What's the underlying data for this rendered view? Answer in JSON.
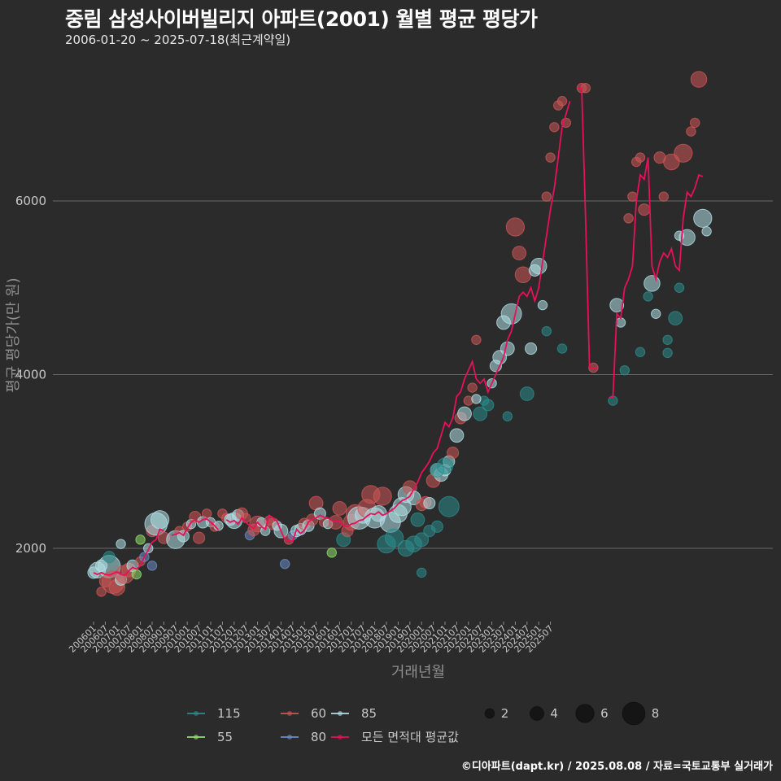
{
  "title": "중림 삼성사이버빌리지 아파트(2001) 월별 평균 평당가",
  "subtitle": "2006-01-20 ~ 2025-07-18(최근계약일)",
  "caption": "©디아파트(dapt.kr) / 2025.08.08 / 자료=국토교통부 실거래가",
  "chart_data": {
    "type": "scatter",
    "title": "중림 삼성사이버빌리지 아파트(2001) 월별 평균 평당가",
    "xlabel": "거래년월",
    "ylabel": "평균 평당가(만 원)",
    "ylim": [
      1000,
      7600
    ],
    "yticks": [
      2000,
      4000,
      6000
    ],
    "x_start_month": "200601",
    "x_end_month": "202508",
    "xticks": [
      "200601",
      "200607",
      "200701",
      "200707",
      "200801",
      "200807",
      "200901",
      "200907",
      "201001",
      "201007",
      "201101",
      "201107",
      "201201",
      "201207",
      "201301",
      "201307",
      "201401",
      "201407",
      "201501",
      "201507",
      "201601",
      "201607",
      "201701",
      "201707",
      "201801",
      "201807",
      "201901",
      "201907",
      "202001",
      "202007",
      "202101",
      "202107",
      "202201",
      "202207",
      "202301",
      "202307",
      "202401",
      "202407",
      "202501",
      "202507"
    ],
    "series_colors": {
      "115": "#2a8c8c",
      "55": "#8ee06a",
      "60": "#cd5555",
      "80": "#6b8cc7",
      "85": "#b0e0e6",
      "avg": "#e8105a"
    },
    "legend": {
      "series": [
        {
          "key": "115",
          "label": "115"
        },
        {
          "key": "60",
          "label": "60"
        },
        {
          "key": "85",
          "label": "85"
        },
        {
          "key": "55",
          "label": "55"
        },
        {
          "key": "80",
          "label": "80"
        },
        {
          "key": "avg",
          "label": "모든 면적대 평균값"
        }
      ],
      "sizes": [
        2,
        4,
        6,
        8
      ]
    },
    "avg_line": [
      [
        0,
        1720
      ],
      [
        2,
        1700
      ],
      [
        4,
        1720
      ],
      [
        6,
        1700
      ],
      [
        8,
        1690
      ],
      [
        10,
        1710
      ],
      [
        12,
        1730
      ],
      [
        14,
        1700
      ],
      [
        16,
        1690
      ],
      [
        18,
        1740
      ],
      [
        20,
        1780
      ],
      [
        22,
        1760
      ],
      [
        24,
        1800
      ],
      [
        26,
        1900
      ],
      [
        28,
        1980
      ],
      [
        30,
        2070
      ],
      [
        32,
        2100
      ],
      [
        34,
        2220
      ],
      [
        36,
        2200
      ],
      null,
      [
        40,
        2150
      ],
      [
        42,
        2160
      ],
      [
        44,
        2180
      ],
      [
        46,
        2150
      ],
      [
        48,
        2230
      ],
      [
        50,
        2300
      ],
      [
        52,
        2330
      ],
      [
        54,
        2300
      ],
      [
        56,
        2330
      ],
      [
        58,
        2340
      ],
      [
        60,
        2300
      ],
      [
        62,
        2260
      ],
      [
        64,
        2210
      ],
      null,
      [
        68,
        2330
      ],
      [
        70,
        2300
      ],
      [
        72,
        2320
      ],
      [
        74,
        2280
      ],
      [
        76,
        2350
      ],
      [
        78,
        2300
      ],
      [
        80,
        2260
      ],
      [
        82,
        2230
      ],
      [
        84,
        2300
      ],
      [
        86,
        2250
      ],
      [
        88,
        2220
      ],
      [
        90,
        2380
      ],
      [
        92,
        2350
      ],
      [
        94,
        2310
      ],
      [
        96,
        2200
      ],
      [
        98,
        2100
      ],
      [
        100,
        2090
      ],
      [
        102,
        2080
      ],
      [
        104,
        2220
      ],
      [
        106,
        2170
      ],
      [
        108,
        2210
      ],
      [
        110,
        2300
      ],
      [
        112,
        2340
      ],
      [
        114,
        2350
      ],
      [
        116,
        2380
      ],
      [
        118,
        2360
      ],
      [
        120,
        2350
      ],
      [
        122,
        2320
      ],
      [
        124,
        2310
      ],
      [
        126,
        2310
      ],
      [
        128,
        2260
      ],
      [
        130,
        2250
      ],
      [
        132,
        2280
      ],
      [
        134,
        2290
      ],
      [
        136,
        2320
      ],
      [
        138,
        2330
      ],
      [
        140,
        2370
      ],
      [
        142,
        2400
      ],
      [
        144,
        2390
      ],
      [
        146,
        2420
      ],
      [
        148,
        2380
      ],
      [
        150,
        2400
      ],
      [
        152,
        2430
      ],
      [
        154,
        2460
      ],
      [
        156,
        2510
      ],
      [
        158,
        2550
      ],
      [
        160,
        2570
      ],
      [
        162,
        2600
      ],
      [
        164,
        2680
      ],
      [
        166,
        2760
      ],
      [
        168,
        2870
      ],
      [
        170,
        2930
      ],
      [
        172,
        3000
      ],
      [
        174,
        3100
      ],
      [
        176,
        3150
      ],
      [
        178,
        3300
      ],
      [
        180,
        3450
      ],
      [
        182,
        3400
      ],
      [
        184,
        3500
      ],
      [
        186,
        3750
      ],
      [
        188,
        3800
      ],
      [
        190,
        3950
      ],
      [
        192,
        4050
      ],
      [
        194,
        4150
      ],
      [
        196,
        3950
      ],
      [
        198,
        3900
      ],
      [
        200,
        3950
      ],
      [
        202,
        3800
      ],
      [
        204,
        3900
      ],
      [
        206,
        4000
      ],
      [
        208,
        4100
      ],
      [
        210,
        4200
      ],
      [
        212,
        4400
      ],
      [
        214,
        4500
      ],
      [
        216,
        4700
      ],
      [
        218,
        4900
      ],
      [
        220,
        4950
      ],
      [
        222,
        4900
      ],
      [
        224,
        5000
      ],
      [
        226,
        4850
      ],
      [
        228,
        5000
      ],
      [
        230,
        5300
      ],
      [
        232,
        5600
      ],
      [
        234,
        5900
      ],
      [
        236,
        6150
      ],
      [
        238,
        6500
      ],
      [
        240,
        6850
      ],
      [
        242,
        7000
      ],
      [
        244,
        7150
      ],
      null,
      [
        248,
        7300
      ],
      [
        250,
        7300
      ],
      [
        252,
        5800
      ],
      [
        254,
        4080
      ],
      [
        256,
        4070
      ],
      [
        258,
        4080
      ],
      null,
      [
        264,
        3730
      ],
      [
        266,
        3740
      ],
      [
        268,
        4700
      ],
      [
        270,
        4650
      ],
      [
        272,
        5000
      ],
      [
        274,
        5100
      ],
      [
        276,
        5250
      ],
      [
        278,
        6000
      ],
      [
        280,
        6300
      ],
      [
        282,
        6250
      ],
      [
        284,
        6500
      ],
      [
        286,
        5250
      ],
      [
        288,
        5100
      ],
      [
        290,
        5300
      ],
      [
        292,
        5400
      ],
      [
        294,
        5350
      ],
      [
        296,
        5450
      ],
      [
        298,
        5250
      ],
      [
        300,
        5200
      ],
      [
        302,
        5800
      ],
      [
        304,
        6100
      ],
      [
        306,
        6050
      ],
      [
        308,
        6150
      ],
      [
        310,
        6300
      ],
      [
        312,
        6280
      ]
    ],
    "points": [
      [
        0,
        1720,
        "85",
        3
      ],
      [
        2,
        1750,
        "85",
        5
      ],
      [
        4,
        1800,
        "85",
        3
      ],
      [
        6,
        1620,
        "60",
        3
      ],
      [
        8,
        1790,
        "85",
        8
      ],
      [
        10,
        1610,
        "60",
        8
      ],
      [
        12,
        1550,
        "60",
        5
      ],
      [
        14,
        1640,
        "85",
        3
      ],
      [
        16,
        1700,
        "60",
        6
      ],
      [
        18,
        1750,
        "60",
        4
      ],
      [
        20,
        1800,
        "85",
        3
      ],
      [
        22,
        1700,
        "55",
        2
      ],
      [
        24,
        1850,
        "60",
        2
      ],
      [
        26,
        1900,
        "80",
        2
      ],
      [
        28,
        2000,
        "85",
        2
      ],
      [
        30,
        2200,
        "60",
        3
      ],
      [
        32,
        2280,
        "85",
        8
      ],
      [
        34,
        2330,
        "85",
        6
      ],
      [
        36,
        2120,
        "60",
        3
      ],
      [
        8,
        1900,
        "115",
        3
      ],
      [
        4,
        1500,
        "60",
        2
      ],
      [
        24,
        2100,
        "55",
        2
      ],
      [
        30,
        1800,
        "80",
        2
      ],
      [
        14,
        2050,
        "85",
        2
      ],
      [
        42,
        2100,
        "85",
        6
      ],
      [
        44,
        2200,
        "60",
        2
      ],
      [
        46,
        2140,
        "85",
        3
      ],
      [
        48,
        2250,
        "60",
        2
      ],
      [
        50,
        2280,
        "85",
        2
      ],
      [
        52,
        2360,
        "60",
        3
      ],
      [
        54,
        2120,
        "60",
        3
      ],
      [
        56,
        2300,
        "85",
        3
      ],
      [
        58,
        2400,
        "60",
        2
      ],
      [
        60,
        2300,
        "85",
        2
      ],
      [
        62,
        2250,
        "60",
        2
      ],
      [
        64,
        2260,
        "85",
        2
      ],
      [
        66,
        2400,
        "60",
        2
      ],
      [
        68,
        2350,
        "60",
        2
      ],
      [
        70,
        2330,
        "85",
        3
      ],
      [
        72,
        2320,
        "85",
        5
      ],
      [
        74,
        2380,
        "85",
        3
      ],
      [
        76,
        2400,
        "60",
        3
      ],
      [
        78,
        2350,
        "60",
        2
      ],
      [
        80,
        2150,
        "80",
        2
      ],
      [
        82,
        2210,
        "60",
        3
      ],
      [
        84,
        2280,
        "60",
        5
      ],
      [
        86,
        2300,
        "85",
        2
      ],
      [
        88,
        2200,
        "85",
        2
      ],
      [
        90,
        2320,
        "60",
        2
      ],
      [
        92,
        2280,
        "60",
        3
      ],
      [
        94,
        2260,
        "85",
        2
      ],
      [
        96,
        2200,
        "85",
        4
      ],
      [
        98,
        1820,
        "80",
        2
      ],
      [
        100,
        2100,
        "60",
        2
      ],
      [
        102,
        2150,
        "80",
        2
      ],
      [
        104,
        2200,
        "85",
        3
      ],
      [
        106,
        2220,
        "85",
        3
      ],
      [
        108,
        2280,
        "60",
        3
      ],
      [
        110,
        2260,
        "85",
        3
      ],
      [
        112,
        2330,
        "60",
        3
      ],
      [
        114,
        2520,
        "60",
        4
      ],
      [
        116,
        2400,
        "85",
        3
      ],
      [
        118,
        2300,
        "60",
        2
      ],
      [
        120,
        2280,
        "85",
        2
      ],
      [
        122,
        1950,
        "55",
        2
      ],
      [
        124,
        2300,
        "60",
        4
      ],
      [
        126,
        2460,
        "60",
        4
      ],
      [
        128,
        2100,
        "115",
        4
      ],
      [
        130,
        2200,
        "60",
        3
      ],
      [
        132,
        2300,
        "60",
        5
      ],
      [
        134,
        2400,
        "60",
        6
      ],
      [
        136,
        2350,
        "85",
        8
      ],
      [
        138,
        2380,
        "85",
        5
      ],
      [
        140,
        2460,
        "60",
        6
      ],
      [
        142,
        2620,
        "60",
        6
      ],
      [
        144,
        2350,
        "85",
        7
      ],
      [
        146,
        2400,
        "85",
        5
      ],
      [
        148,
        2600,
        "60",
        6
      ],
      [
        150,
        2050,
        "115",
        6
      ],
      [
        152,
        2300,
        "85",
        7
      ],
      [
        154,
        2120,
        "115",
        6
      ],
      [
        156,
        2400,
        "85",
        6
      ],
      [
        158,
        2480,
        "85",
        6
      ],
      [
        160,
        2620,
        "85",
        5
      ],
      [
        162,
        2700,
        "60",
        4
      ],
      [
        164,
        2580,
        "85",
        4
      ],
      [
        166,
        2330,
        "115",
        4
      ],
      [
        168,
        2500,
        "60",
        3
      ],
      [
        170,
        2530,
        "60",
        3
      ],
      [
        172,
        2520,
        "85",
        3
      ],
      [
        174,
        2780,
        "60",
        4
      ],
      [
        176,
        2900,
        "85",
        4
      ],
      [
        178,
        2850,
        "85",
        4
      ],
      [
        180,
        2900,
        "85",
        3
      ],
      [
        182,
        3000,
        "85",
        3
      ],
      [
        184,
        3100,
        "60",
        3
      ],
      [
        186,
        3300,
        "85",
        4
      ],
      [
        188,
        3500,
        "60",
        3
      ],
      [
        190,
        3550,
        "85",
        4
      ],
      [
        192,
        3700,
        "60",
        2
      ],
      [
        194,
        3850,
        "60",
        2
      ],
      [
        196,
        4400,
        "60",
        2
      ],
      [
        198,
        3550,
        "115",
        4
      ],
      [
        200,
        3700,
        "115",
        2
      ],
      [
        202,
        3650,
        "115",
        3
      ],
      [
        204,
        3900,
        "85",
        2
      ],
      [
        206,
        4100,
        "85",
        3
      ],
      [
        208,
        4200,
        "85",
        4
      ],
      [
        210,
        4600,
        "85",
        4
      ],
      [
        212,
        4300,
        "85",
        4
      ],
      [
        214,
        4700,
        "85",
        7
      ],
      [
        216,
        5700,
        "60",
        6
      ],
      [
        218,
        5400,
        "60",
        4
      ],
      [
        220,
        5150,
        "60",
        5
      ],
      [
        222,
        3780,
        "115",
        4
      ],
      [
        224,
        4300,
        "85",
        3
      ],
      [
        226,
        5200,
        "85",
        3
      ],
      [
        228,
        5250,
        "85",
        5
      ],
      [
        230,
        4800,
        "85",
        2
      ],
      [
        232,
        6050,
        "60",
        2
      ],
      [
        234,
        6500,
        "60",
        2
      ],
      [
        236,
        6850,
        "60",
        2
      ],
      [
        238,
        7100,
        "60",
        2
      ],
      [
        240,
        7150,
        "60",
        2
      ],
      [
        242,
        6900,
        "60",
        2
      ],
      [
        164,
        2050,
        "115",
        5
      ],
      [
        168,
        2100,
        "115",
        4
      ],
      [
        160,
        2000,
        "115",
        5
      ],
      [
        172,
        2200,
        "115",
        3
      ],
      [
        176,
        2900,
        "115",
        4
      ],
      [
        180,
        2950,
        "115",
        5
      ],
      [
        182,
        2480,
        "115",
        7
      ],
      [
        176,
        2250,
        "115",
        3
      ],
      [
        168,
        1720,
        "115",
        2
      ],
      [
        250,
        7300,
        "60",
        2
      ],
      [
        252,
        7300,
        "60",
        2
      ],
      [
        256,
        4080,
        "60",
        2
      ],
      [
        266,
        3700,
        "115",
        2
      ],
      [
        268,
        4800,
        "85",
        4
      ],
      [
        270,
        4600,
        "85",
        2
      ],
      [
        272,
        4050,
        "115",
        2
      ],
      [
        274,
        5800,
        "60",
        2
      ],
      [
        276,
        6050,
        "60",
        2
      ],
      [
        278,
        6450,
        "60",
        2
      ],
      [
        280,
        6500,
        "60",
        2
      ],
      [
        282,
        5900,
        "60",
        3
      ],
      [
        284,
        4900,
        "115",
        2
      ],
      [
        286,
        5050,
        "85",
        5
      ],
      [
        288,
        4700,
        "85",
        2
      ],
      [
        290,
        6500,
        "60",
        3
      ],
      [
        292,
        6050,
        "60",
        2
      ],
      [
        294,
        4400,
        "115",
        2
      ],
      [
        296,
        6450,
        "60",
        5
      ],
      [
        298,
        4650,
        "115",
        4
      ],
      [
        300,
        5600,
        "85",
        2
      ],
      [
        302,
        6550,
        "60",
        6
      ],
      [
        304,
        5580,
        "85",
        5
      ],
      [
        306,
        6800,
        "60",
        2
      ],
      [
        308,
        6900,
        "60",
        2
      ],
      [
        310,
        7400,
        "60",
        5
      ],
      [
        312,
        5800,
        "85",
        6
      ],
      [
        314,
        5650,
        "85",
        2
      ],
      [
        294,
        4250,
        "115",
        2
      ],
      [
        300,
        5000,
        "115",
        2
      ],
      [
        280,
        4260,
        "115",
        2
      ],
      [
        232,
        4500,
        "115",
        2
      ],
      [
        240,
        4300,
        "115",
        2
      ],
      [
        212,
        3520,
        "115",
        2
      ],
      [
        196,
        3720,
        "85",
        2
      ]
    ]
  }
}
